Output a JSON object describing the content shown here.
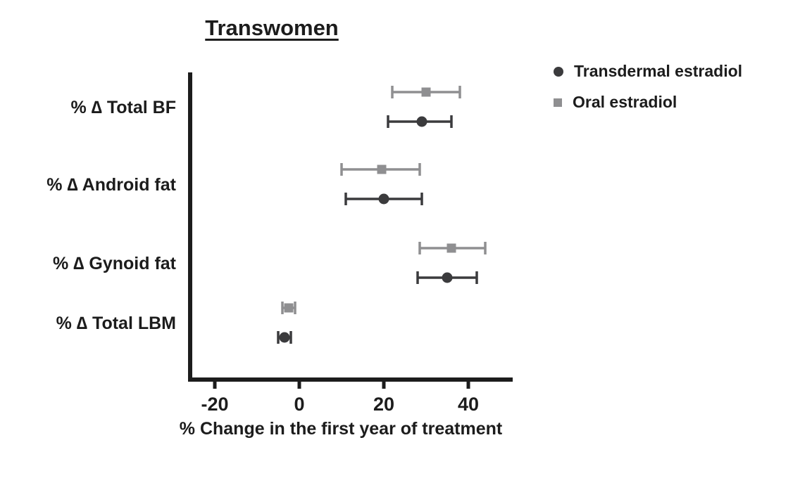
{
  "chart_data": {
    "type": "scatter",
    "title": "Transwomen",
    "xlabel": "% Change in the first year of treatment",
    "xlim": [
      -26,
      50
    ],
    "xticks": [
      -20,
      0,
      20,
      40
    ],
    "grid": false,
    "legend_position": "top-right",
    "categories": [
      "% ∆ Total BF",
      "% ∆ Android fat",
      "% ∆ Gynoid fat",
      "% ∆ Total LBM"
    ],
    "series": [
      {
        "name": "Transdermal estradiol",
        "marker": "circle",
        "color": "#3b3b3d",
        "values": [
          29,
          20,
          35,
          -3.5
        ],
        "ci_low": [
          21,
          11,
          28,
          -5
        ],
        "ci_high": [
          36,
          29,
          42,
          -2
        ]
      },
      {
        "name": "Oral estradiol",
        "marker": "square",
        "color": "#8f8f91",
        "values": [
          30,
          19.5,
          36,
          -2.5
        ],
        "ci_low": [
          22,
          10,
          28.5,
          -4
        ],
        "ci_high": [
          38,
          28.5,
          44,
          -1
        ]
      }
    ]
  }
}
